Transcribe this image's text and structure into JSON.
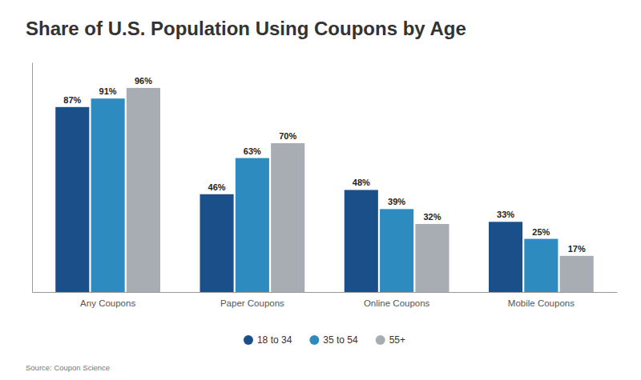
{
  "chart_data": {
    "type": "bar",
    "title": "Share of U.S. Population Using Coupons by Age",
    "categories": [
      "Any Coupons",
      "Paper Coupons",
      "Online Coupons",
      "Mobile Coupons"
    ],
    "series": [
      {
        "name": "18 to 34",
        "color": "#1b4f8a",
        "values": [
          87,
          46,
          48,
          33
        ],
        "value_labels": [
          "87%",
          "46%",
          "48%",
          "33%"
        ]
      },
      {
        "name": "35 to 54",
        "color": "#2e8bc0",
        "values": [
          91,
          63,
          39,
          25
        ],
        "value_labels": [
          "91%",
          "63%",
          "39%",
          "25%"
        ]
      },
      {
        "name": "55+",
        "color": "#a8adb3",
        "values": [
          96,
          70,
          32,
          17
        ],
        "value_labels": [
          "96%",
          "70%",
          "32%",
          "17%"
        ]
      }
    ],
    "ylim": [
      0,
      108
    ],
    "data_labels": true,
    "tick_labels": "x",
    "grid": false,
    "legend": "bottom",
    "annotations": [
      "Source: Coupon Science"
    ]
  }
}
